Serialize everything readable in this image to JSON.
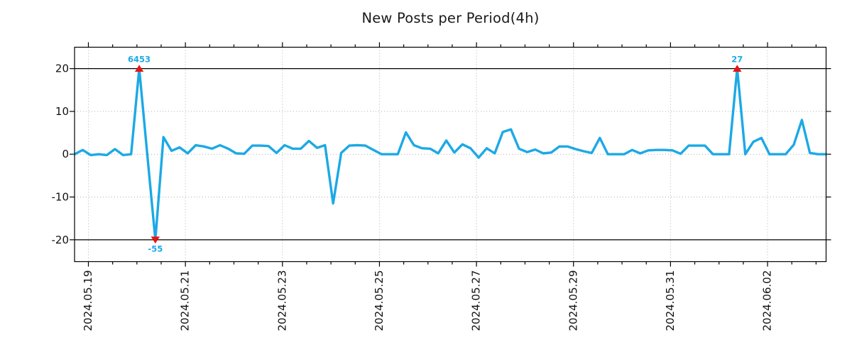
{
  "chart_data": {
    "type": "line",
    "title": "New Posts per Period(4h)",
    "period_hours": 4,
    "x_tick_labels": [
      "2024.05.19",
      "2024.05.21",
      "2024.05.23",
      "2024.05.25",
      "2024.05.27",
      "2024.05.29",
      "2024.05.31",
      "2024.06.02"
    ],
    "y_tick_values": [
      20,
      10,
      0,
      -10,
      -20
    ],
    "ylim": [
      -25.1,
      25.0
    ],
    "clip_min": -20,
    "clip_max": 20,
    "grid": true,
    "legend": null,
    "line_color": "#1CA9E5",
    "marker_color": "#E61414",
    "grid_color": "#b0b0b0",
    "values": [
      0,
      1.0,
      -0.2,
      0,
      -0.2,
      1.2,
      -0.2,
      0,
      6453,
      0,
      -55,
      4.0,
      0.8,
      1.6,
      0.2,
      2.1,
      1.8,
      1.3,
      2.1,
      1.3,
      0.2,
      0.1,
      2.0,
      2.0,
      1.9,
      0.3,
      2.1,
      1.3,
      1.3,
      3.1,
      1.5,
      2.1,
      -11.5,
      0.3,
      2.0,
      2.1,
      2.0,
      1.0,
      0,
      0,
      0,
      5.1,
      2.1,
      1.4,
      1.3,
      0.2,
      3.2,
      0.4,
      2.3,
      1.4,
      -0.8,
      1.4,
      0.2,
      5.2,
      5.8,
      1.3,
      0.5,
      1.1,
      0.2,
      0.4,
      1.8,
      1.8,
      1.2,
      0.7,
      0.3,
      3.8,
      0,
      0,
      0,
      1.0,
      0.2,
      0.9,
      1.0,
      1.0,
      0.9,
      0.1,
      2.0,
      2.0,
      2.0,
      0,
      0,
      0,
      27,
      0,
      2.9,
      3.8,
      0,
      0,
      0,
      2.2,
      8.0,
      0.3,
      0,
      0
    ],
    "annotations": [
      {
        "label": "6453",
        "index": 8,
        "direction": "max"
      },
      {
        "label": "-55",
        "index": 10,
        "direction": "min"
      },
      {
        "label": "27",
        "index": 82,
        "direction": "max"
      }
    ]
  }
}
